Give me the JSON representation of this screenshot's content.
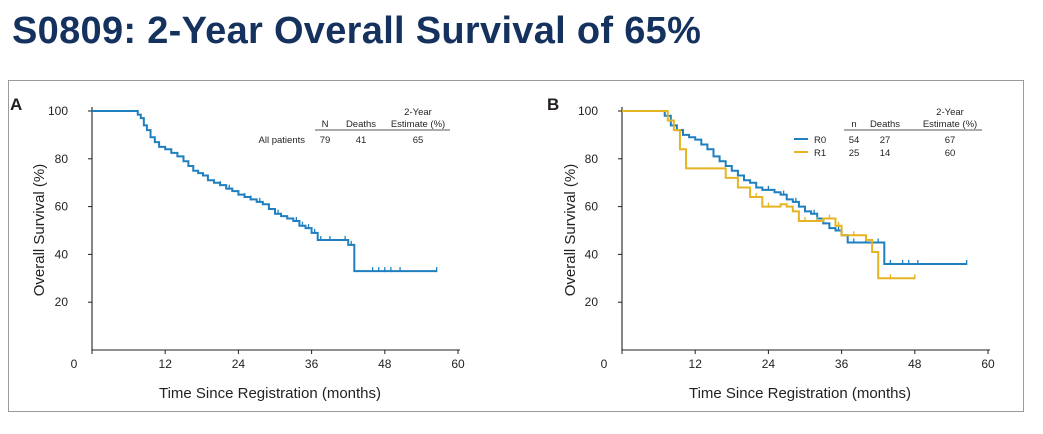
{
  "slide": {
    "title": "S0809: 2-Year Overall Survival of 65%"
  },
  "chart_data": [
    {
      "panel_label": "A",
      "type": "line",
      "chart_style": "kaplan-meier step curve",
      "xlabel": "Time Since Registration (months)",
      "ylabel": "Overall Survival (%)",
      "xlim": [
        0,
        60
      ],
      "ylim": [
        0,
        100
      ],
      "xticks": [
        0,
        12,
        24,
        36,
        48,
        60
      ],
      "yticks": [
        20,
        40,
        60,
        80,
        100
      ],
      "legend_table": {
        "headers": [
          "N",
          "Deaths",
          "2-Year",
          "Estimate (%)"
        ],
        "rows": [
          {
            "label": "All patients",
            "n": "79",
            "deaths": "41",
            "estimate": "65"
          }
        ]
      },
      "series": [
        {
          "name": "All patients",
          "color": "#1f7fbf",
          "steps": [
            [
              0,
              100
            ],
            [
              7.5,
              98.5
            ],
            [
              8,
              97
            ],
            [
              8.5,
              94
            ],
            [
              9,
              92
            ],
            [
              9.6,
              89
            ],
            [
              10.3,
              87
            ],
            [
              11,
              85
            ],
            [
              12,
              84
            ],
            [
              13,
              82.5
            ],
            [
              14,
              81
            ],
            [
              15,
              79
            ],
            [
              15.8,
              77
            ],
            [
              16.6,
              75
            ],
            [
              17.4,
              74
            ],
            [
              18.2,
              73
            ],
            [
              19,
              71
            ],
            [
              20,
              70
            ],
            [
              21,
              69
            ],
            [
              22,
              67.5
            ],
            [
              23,
              66.5
            ],
            [
              24,
              65
            ],
            [
              25,
              64
            ],
            [
              26,
              63
            ],
            [
              27,
              62
            ],
            [
              28,
              61
            ],
            [
              29,
              59
            ],
            [
              30,
              57
            ],
            [
              31,
              56
            ],
            [
              32,
              55
            ],
            [
              33,
              54
            ],
            [
              34,
              52
            ],
            [
              35,
              51
            ],
            [
              36,
              49
            ],
            [
              37,
              46
            ],
            [
              42,
              44
            ],
            [
              43,
              33
            ],
            [
              56.5,
              33
            ]
          ],
          "censor_x": [
            21,
            22.5,
            24,
            25,
            26,
            27.5,
            29,
            30.5,
            33.5,
            34.5,
            35.5,
            36.5,
            37.5,
            39,
            41.5,
            42.5,
            46,
            47,
            48,
            49,
            50.5,
            56.5
          ]
        }
      ]
    },
    {
      "panel_label": "B",
      "type": "line",
      "chart_style": "kaplan-meier step curve",
      "xlabel": "Time Since Registration (months)",
      "ylabel": "Overall Survival (%)",
      "xlim": [
        0,
        60
      ],
      "ylim": [
        0,
        100
      ],
      "xticks": [
        0,
        12,
        24,
        36,
        48,
        60
      ],
      "yticks": [
        20,
        40,
        60,
        80,
        100
      ],
      "legend_table": {
        "headers": [
          "n",
          "Deaths",
          "2-Year",
          "Estimate (%)"
        ],
        "rows": [
          {
            "label": "R0",
            "n": "54",
            "deaths": "27",
            "estimate": "67",
            "color": "#1f7fbf"
          },
          {
            "label": "R1",
            "n": "25",
            "deaths": "14",
            "estimate": "60",
            "color": "#e6b422"
          }
        ]
      },
      "series": [
        {
          "name": "R0",
          "color": "#1f7fbf",
          "steps": [
            [
              0,
              100
            ],
            [
              7,
              98
            ],
            [
              8,
              94
            ],
            [
              9,
              92
            ],
            [
              10,
              90
            ],
            [
              11,
              89
            ],
            [
              12,
              88
            ],
            [
              13,
              86
            ],
            [
              14,
              84
            ],
            [
              15,
              81
            ],
            [
              16,
              79
            ],
            [
              17,
              77
            ],
            [
              18,
              75
            ],
            [
              19,
              73
            ],
            [
              20,
              71
            ],
            [
              21,
              70
            ],
            [
              22,
              68
            ],
            [
              23,
              67
            ],
            [
              25,
              66
            ],
            [
              26,
              65
            ],
            [
              27,
              63
            ],
            [
              28,
              62
            ],
            [
              29,
              60
            ],
            [
              30,
              58
            ],
            [
              31,
              57
            ],
            [
              32,
              55
            ],
            [
              33,
              53
            ],
            [
              34,
              51
            ],
            [
              35,
              50
            ],
            [
              36,
              48
            ],
            [
              37,
              45
            ],
            [
              43,
              36
            ],
            [
              56.5,
              36
            ]
          ],
          "censor_x": [
            24,
            26.5,
            28.5,
            31.5,
            33,
            35.5,
            38,
            40,
            42,
            44,
            46,
            47,
            48.5,
            56.5
          ]
        },
        {
          "name": "R1",
          "color": "#e6b422",
          "steps": [
            [
              0,
              100
            ],
            [
              7.5,
              96
            ],
            [
              8.5,
              92
            ],
            [
              9.5,
              84
            ],
            [
              10.5,
              76
            ],
            [
              17,
              72
            ],
            [
              19,
              68
            ],
            [
              21,
              64
            ],
            [
              23,
              60
            ],
            [
              26,
              61
            ],
            [
              27,
              60
            ],
            [
              28,
              58
            ],
            [
              29,
              54
            ],
            [
              33,
              55
            ],
            [
              35,
              52
            ],
            [
              36,
              48
            ],
            [
              40,
              46
            ],
            [
              41,
              41
            ],
            [
              42,
              30
            ],
            [
              48,
              30
            ]
          ],
          "censor_x": [
            22,
            24,
            30,
            32,
            34,
            35.5,
            38,
            44,
            48
          ]
        }
      ]
    }
  ]
}
